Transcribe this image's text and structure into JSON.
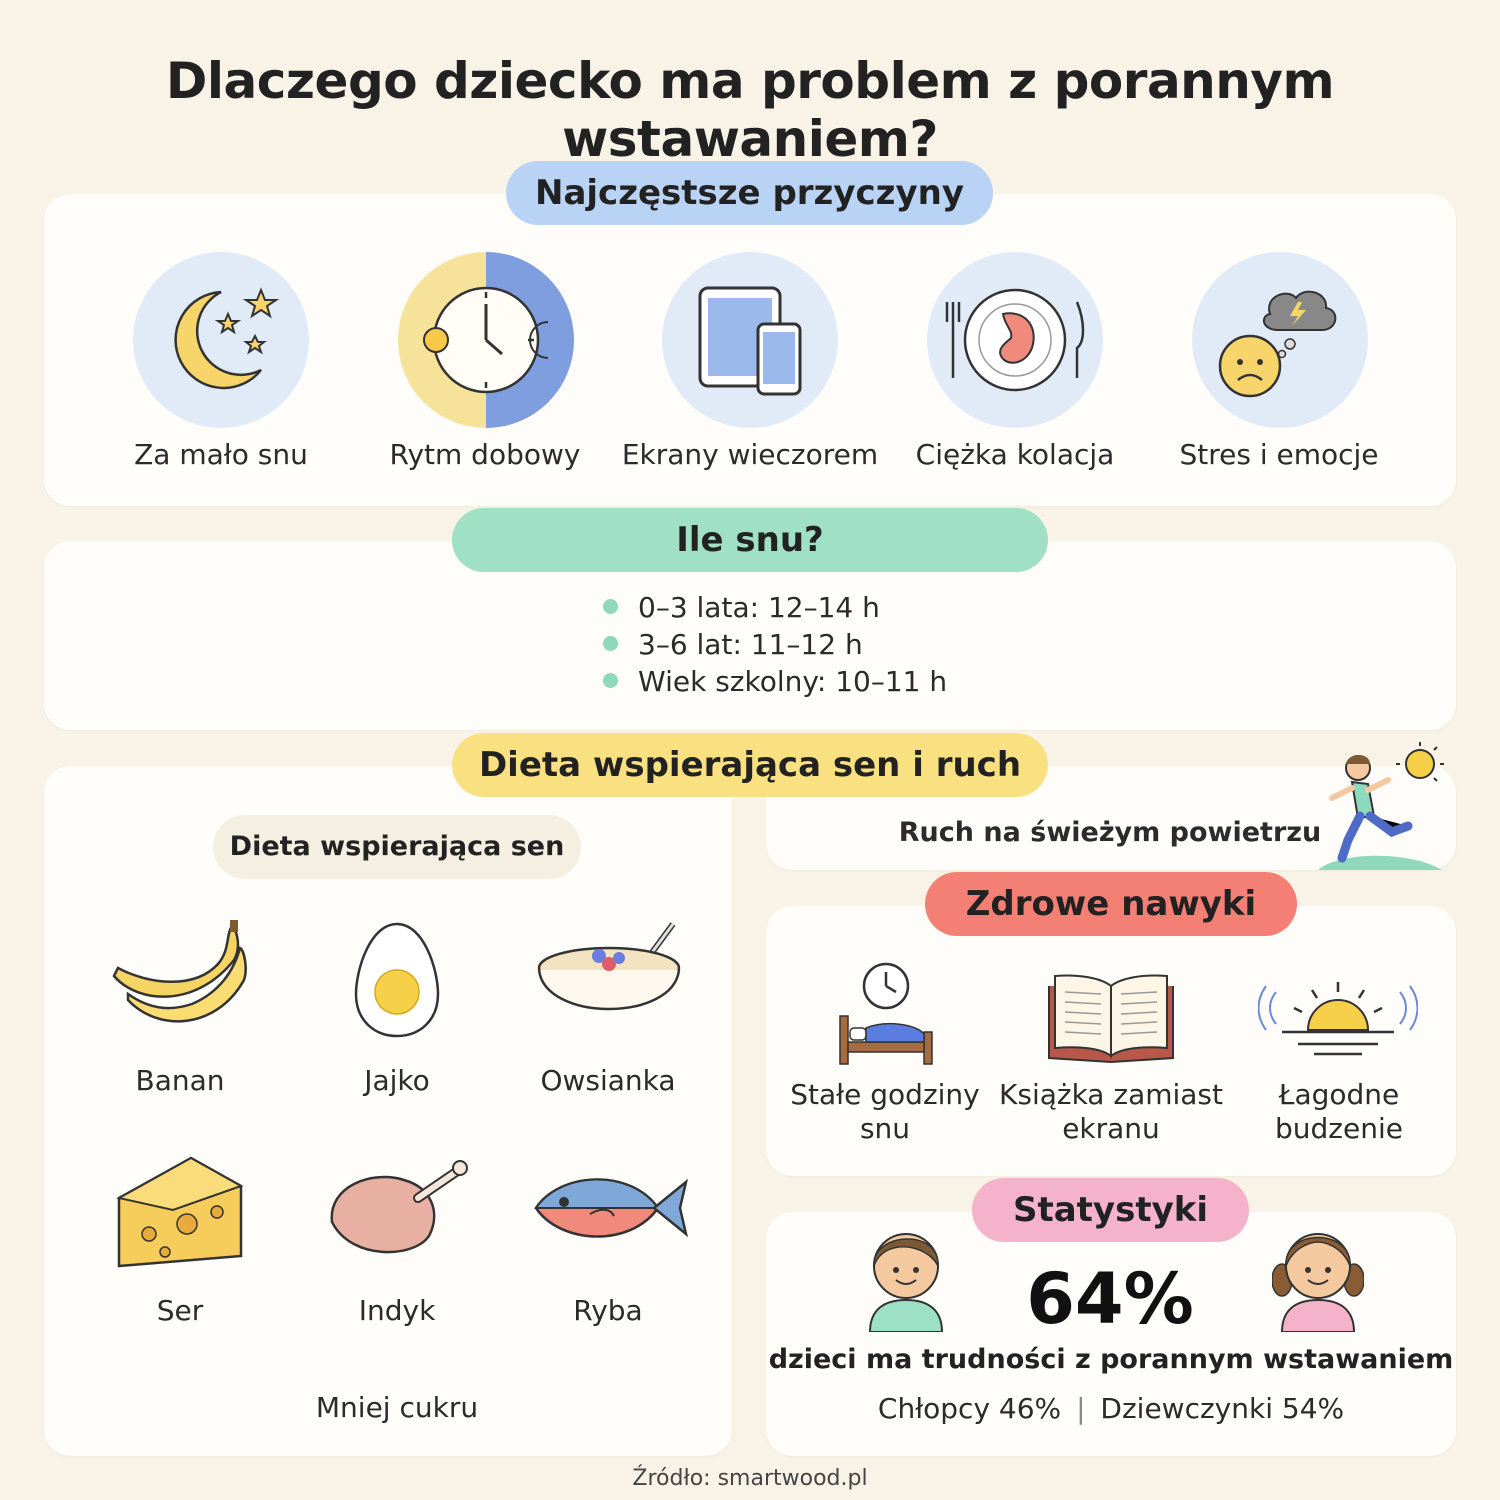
{
  "title": "Dlaczego dziecko ma problem z porannym wstawaniem?",
  "causes": {
    "heading": "Najczęstsze przyczyny",
    "items": [
      {
        "label": "Za mało snu",
        "icon": "moon-stars-icon"
      },
      {
        "label": "Rytm dobowy",
        "icon": "day-night-clock-icon"
      },
      {
        "label": "Ekrany wieczorem",
        "icon": "tablet-phone-icon"
      },
      {
        "label": "Ciężka kolacja",
        "icon": "plate-stomach-icon"
      },
      {
        "label": "Stres i emocje",
        "icon": "worried-face-cloud-icon"
      }
    ]
  },
  "sleep": {
    "heading": "Ile snu?",
    "items": [
      "0–3 lata: 12–14 h",
      "3–6 lat: 11–12 h",
      "Wiek szkolny: 10–11 h"
    ]
  },
  "diet_section": {
    "heading": "Dieta wspierająca sen i ruch",
    "subheading": "Dieta wspierająca sen",
    "foods": [
      {
        "label": "Banan",
        "icon": "banana-icon"
      },
      {
        "label": "Jajko",
        "icon": "egg-icon"
      },
      {
        "label": "Owsianka",
        "icon": "oatmeal-bowl-icon"
      },
      {
        "label": "Ser",
        "icon": "cheese-icon"
      },
      {
        "label": "Indyk",
        "icon": "turkey-icon"
      },
      {
        "label": "Ryba",
        "icon": "fish-icon"
      }
    ],
    "footer": "Mniej cukru"
  },
  "outdoor": {
    "label": "Ruch na świeżym powietrzu",
    "icon": "running-child-icon"
  },
  "habits": {
    "heading": "Zdrowe nawyki",
    "items": [
      {
        "line1": "Stałe godziny",
        "line2": "snu",
        "icon": "bed-clock-icon"
      },
      {
        "line1": "Książka zamiast",
        "line2": "ekranu",
        "icon": "open-book-icon"
      },
      {
        "line1": "Łagodne",
        "line2": "budzenie",
        "icon": "sunrise-icon"
      }
    ]
  },
  "stats": {
    "heading": "Statystyki",
    "percent": "64%",
    "description": "dzieci ma trudności z porannym wstawaniem",
    "boys": "Chłopcy 46%",
    "separator": "|",
    "girls": "Dziewczynki 54%"
  },
  "source": "Źródło: smartwood.pl",
  "colors": {
    "background": "#f8f3e6",
    "causes_pill": "#b9d3f5",
    "sleep_pill": "#9fe0c6",
    "diet_pill": "#f9e182",
    "habits_pill": "#f47f74",
    "stats_pill": "#f4b3cb"
  }
}
